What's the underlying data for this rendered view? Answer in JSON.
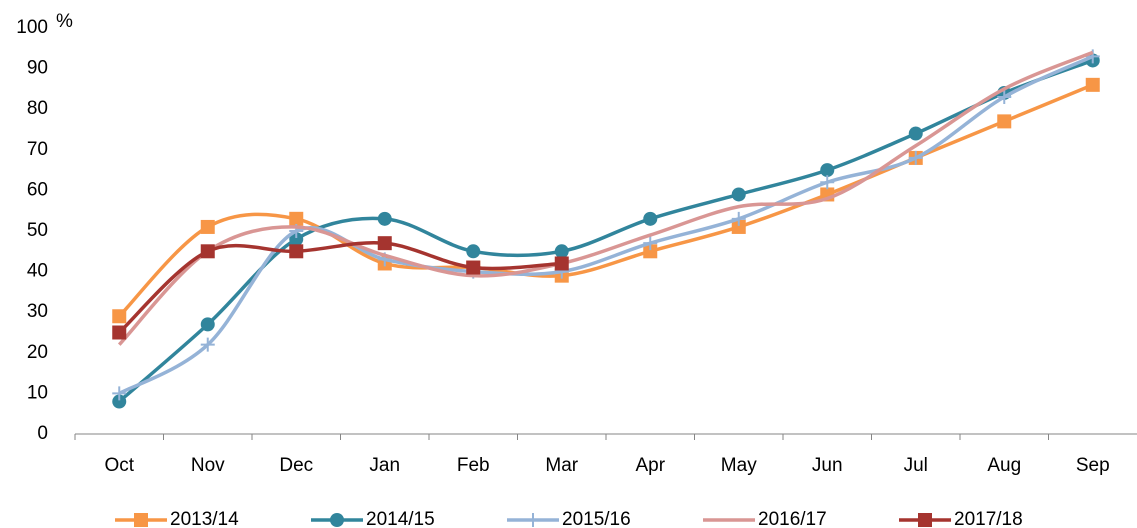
{
  "chart_data": {
    "type": "line",
    "y_unit": "%",
    "categories": [
      "Oct",
      "Nov",
      "Dec",
      "Jan",
      "Feb",
      "Mar",
      "Apr",
      "May",
      "Jun",
      "Jul",
      "Aug",
      "Sep"
    ],
    "series": [
      {
        "name": "2013/14",
        "color": "#f79646",
        "marker": "square",
        "values": [
          29,
          51,
          53,
          42,
          41,
          39,
          45,
          51,
          59,
          68,
          77,
          86
        ]
      },
      {
        "name": "2014/15",
        "color": "#31859c",
        "marker": "circle",
        "values": [
          8,
          27,
          48,
          53,
          45,
          45,
          53,
          59,
          65,
          74,
          84,
          92
        ]
      },
      {
        "name": "2015/16",
        "color": "#95b3d7",
        "marker": "plus",
        "values": [
          10,
          22,
          50,
          43,
          40,
          40,
          47,
          53,
          62,
          68,
          83,
          93
        ]
      },
      {
        "name": "2016/17",
        "color": "#d99694",
        "marker": "none",
        "values": [
          22,
          45,
          51,
          44,
          39,
          42,
          49,
          56,
          58,
          71,
          85,
          94
        ]
      },
      {
        "name": "2017/18",
        "color": "#a5342f",
        "marker": "square",
        "values": [
          25,
          45,
          45,
          47,
          41,
          42,
          null,
          null,
          null,
          null,
          null,
          null
        ]
      }
    ],
    "ylim": [
      0,
      100
    ],
    "yticks": [
      0,
      10,
      20,
      30,
      40,
      50,
      60,
      70,
      80,
      90,
      100
    ],
    "grid": false,
    "legend": "bottom"
  }
}
